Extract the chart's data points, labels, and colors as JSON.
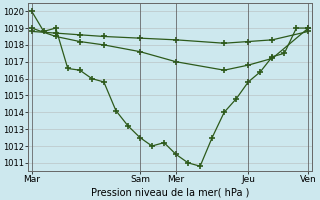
{
  "background_color": "#cde8ee",
  "grid_color": "#b0b0b0",
  "line_color": "#2d5a1b",
  "title": "Pression niveau de la mer( hPa )",
  "ylim": [
    1010.5,
    1020.5
  ],
  "yticks": [
    1011,
    1012,
    1013,
    1014,
    1015,
    1016,
    1017,
    1018,
    1019,
    1020
  ],
  "xtick_labels": [
    "Mar",
    "Sam",
    "Mer",
    "Jeu",
    "Ven"
  ],
  "xtick_positions": [
    0,
    9,
    12,
    18,
    23
  ],
  "num_points": 24,
  "series1_x": [
    0,
    1,
    2,
    3,
    4,
    5,
    6,
    7,
    8,
    9,
    10,
    11,
    12,
    13,
    14,
    15,
    16,
    17,
    18,
    19,
    20,
    21,
    22,
    23
  ],
  "series1_y": [
    1020,
    1018.8,
    1019,
    1016.6,
    1016.5,
    1016.0,
    1015.8,
    1014.1,
    1013.2,
    1012.5,
    1012.0,
    1012.2,
    1011.5,
    1011.0,
    1010.8,
    1012.5,
    1014.0,
    1014.8,
    1015.8,
    1016.4,
    1017.3,
    1017.5,
    1019.0,
    1019.0
  ],
  "series2_x": [
    0,
    2,
    4,
    6,
    9,
    12,
    16,
    18,
    20,
    23
  ],
  "series2_y": [
    1019,
    1018.5,
    1018.2,
    1018.0,
    1017.6,
    1017.0,
    1016.5,
    1016.8,
    1017.2,
    1019.0
  ],
  "series3_x": [
    0,
    2,
    4,
    6,
    9,
    12,
    16,
    18,
    20,
    23
  ],
  "series3_y": [
    1018.8,
    1018.7,
    1018.6,
    1018.5,
    1018.4,
    1018.3,
    1018.1,
    1018.2,
    1018.3,
    1018.8
  ]
}
